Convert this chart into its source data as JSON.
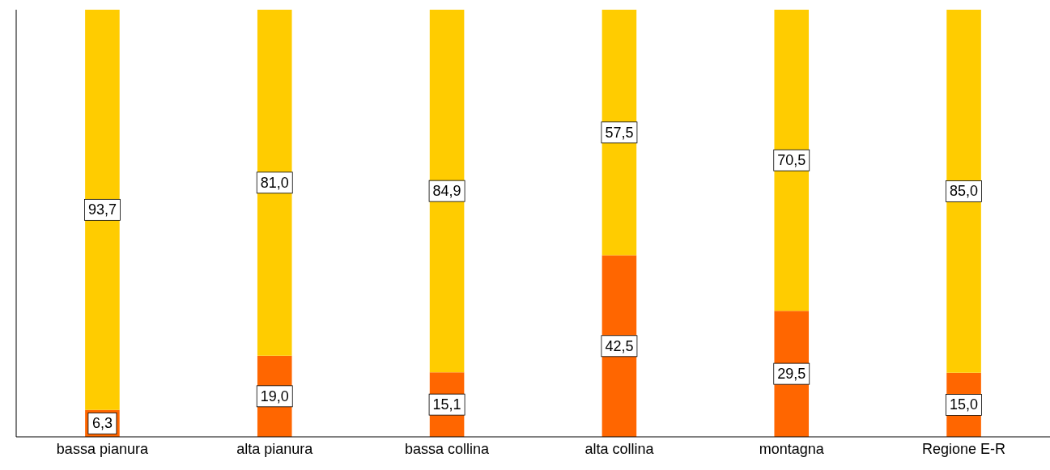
{
  "chart_data": {
    "type": "bar",
    "stacked": true,
    "categories": [
      "bassa pianura",
      "alta pianura",
      "bassa collina",
      "alta collina",
      "montagna",
      "Regione E-R"
    ],
    "series": [
      {
        "color": "#ff6600",
        "values": [
          6.3,
          19.0,
          15.1,
          42.5,
          29.5,
          15.0
        ],
        "value_labels": [
          "6,3",
          "19,0",
          "15,1",
          "42,5",
          "29,5",
          "15,0"
        ]
      },
      {
        "color": "#ffcc00",
        "values": [
          93.7,
          81.0,
          84.9,
          57.5,
          70.5,
          85.0
        ],
        "value_labels": [
          "93,7",
          "81,0",
          "84,9",
          "57,5",
          "70,5",
          "85,0"
        ]
      }
    ],
    "ylim": [
      0,
      100
    ],
    "tick_labels": "x",
    "grid": false,
    "legend": false
  }
}
